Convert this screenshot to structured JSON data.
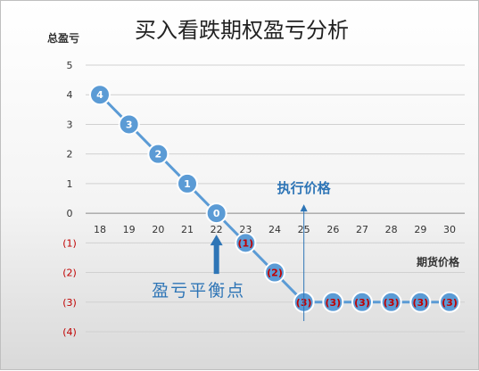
{
  "chart_data": {
    "type": "line",
    "title": "买入看跌期权盈亏分析",
    "ylabel": "总盈亏",
    "xlabel": "期货价格",
    "x": [
      18,
      19,
      20,
      21,
      22,
      23,
      24,
      25,
      26,
      27,
      28,
      29,
      30
    ],
    "series": [
      {
        "values": [
          4,
          3,
          2,
          1,
          0,
          -1,
          -2,
          -3,
          -3,
          -3,
          -3,
          -3,
          -3
        ]
      }
    ],
    "data_labels": [
      "4",
      "3",
      "2",
      "1",
      "0",
      "(1)",
      "(2)",
      "(3)",
      "(3)",
      "(3)",
      "(3)",
      "(3)",
      "(3)"
    ],
    "y_ticks": [
      5,
      4,
      3,
      2,
      1,
      0,
      -1,
      -2,
      -3,
      -4
    ],
    "y_tick_labels": [
      "5",
      "4",
      "3",
      "2",
      "1",
      "0",
      "(1)",
      "(2)",
      "(3)",
      "(4)"
    ],
    "ylim": [
      -4,
      5
    ],
    "xlim": [
      18,
      30
    ],
    "grid": true,
    "legend": "none",
    "colors": {
      "series": "#5b9bd5",
      "negative_label": "#c00000",
      "annotation": "#2e75b6"
    },
    "annotations": [
      {
        "text": "执行价格",
        "x": 25,
        "y": 0,
        "marker": "thin-arrow-up"
      },
      {
        "text": "盈亏平衡点",
        "x": 22,
        "y": 0,
        "marker": "block-arrow-up"
      }
    ]
  }
}
